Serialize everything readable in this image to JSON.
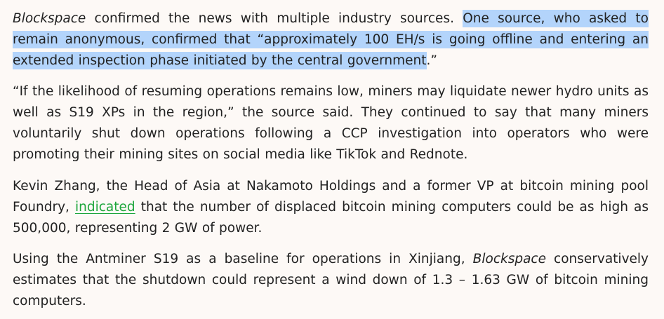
{
  "article": {
    "p1": {
      "publication": "Blockspace",
      "lead": " confirmed the news with multiple industry sources. ",
      "highlighted": "One source, who asked to remain anonymous, confirmed that “approximately 100 EH/s is going offline and entering an extended inspection phase initiated by the central government",
      "tail": ".”"
    },
    "p2": {
      "text": "“If the likelihood of resuming operations remains low, miners may liquidate newer hydro units as well as S19 XPs in the region,” the source said. They continued to say that many miners voluntarily shut down operations following a CCP investigation into operators who were promoting their mining sites on social media like TikTok and Rednote."
    },
    "p3": {
      "before_link": "Kevin Zhang, the Head of Asia at Nakamoto Holdings and a former VP at bitcoin mining pool Foundry, ",
      "link_text": "indicated",
      "after_link": " that the number of displaced bitcoin mining computers could be as high as 500,000, representing 2 GW of power."
    },
    "p4": {
      "before_publication": "Using the Antminer S19 as a baseline for operations in Xinjiang, ",
      "publication": "Blockspace",
      "after_publication": " conservatively estimates that the shutdown could represent a wind down of 1.3 – 1.63 GW of bitcoin mining computers."
    }
  },
  "colors": {
    "background": "#fdf9f6",
    "text": "#222222",
    "selection": "#b3d4fb",
    "link": "#1ea63c"
  }
}
